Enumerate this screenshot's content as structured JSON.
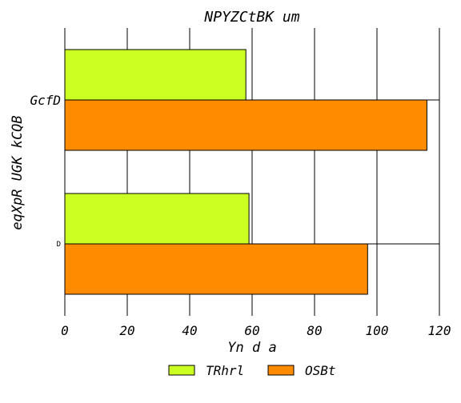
{
  "chart_data": {
    "type": "bar",
    "orientation": "horizontal",
    "title": "NPYZCtBK um",
    "xlabel": "Yn d a",
    "ylabel": "eqXpR UGK kCQB",
    "categories": [
      "GcfD",
      "D"
    ],
    "category_label_sizes": [
      "large",
      "small"
    ],
    "series": [
      {
        "name": "TRhrl",
        "values": [
          58,
          59
        ],
        "color": "#ccff22"
      },
      {
        "name": "OSBt",
        "values": [
          116,
          97
        ],
        "color": "#ff8c00"
      }
    ],
    "xlim": [
      0,
      120
    ],
    "xticks": [
      "0",
      "20",
      "40",
      "60",
      "80",
      "100",
      "120"
    ],
    "xtick_values": [
      0,
      20,
      40,
      60,
      80,
      100,
      120
    ],
    "grid": "vertical",
    "legend_position": "bottom-center"
  }
}
